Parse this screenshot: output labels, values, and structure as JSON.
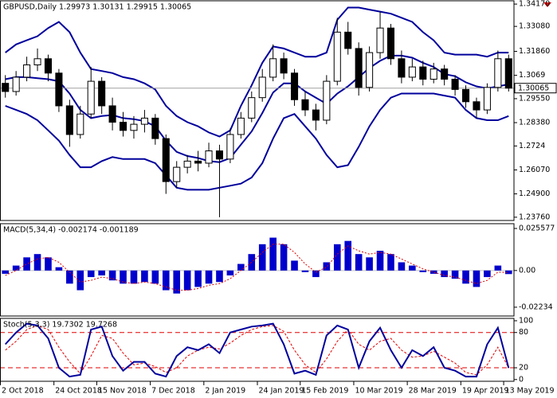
{
  "chart_data": [
    {
      "type": "candlestick",
      "title": "GBPUSD,Daily 1.29973 1.30131 1.29915 1.30065",
      "categories": [
        "2 Oct 2018",
        null,
        null,
        null,
        null,
        "24 Oct 2018",
        null,
        null,
        null,
        "15 Nov 2018",
        null,
        null,
        null,
        null,
        "7 Dec 2018",
        null,
        null,
        null,
        null,
        "2 Jan 2019",
        null,
        null,
        null,
        null,
        "24 Jan 2019",
        null,
        null,
        null,
        "15 Feb 2019",
        null,
        null,
        null,
        null,
        "10 Mar 2019",
        null,
        null,
        null,
        null,
        "28 Mar 2019",
        null,
        null,
        null,
        null,
        "19 Apr 2019",
        null,
        null,
        null,
        "13 May 2019"
      ],
      "open": [
        1.303,
        1.299,
        1.306,
        1.312,
        1.315,
        1.308,
        1.292,
        1.278,
        1.288,
        1.304,
        1.292,
        1.284,
        1.28,
        1.283,
        1.286,
        1.276,
        1.255,
        1.262,
        1.265,
        1.264,
        1.27,
        1.266,
        1.278,
        1.286,
        1.296,
        1.306,
        1.315,
        1.308,
        1.295,
        1.29,
        1.285,
        1.304,
        1.328,
        1.32,
        1.301,
        1.318,
        1.33,
        1.315,
        1.306,
        1.311,
        1.305,
        1.31,
        1.305,
        1.3,
        1.294,
        1.29,
        1.301,
        1.315
      ],
      "high": [
        1.307,
        1.309,
        1.316,
        1.32,
        1.317,
        1.31,
        1.295,
        1.292,
        1.311,
        1.306,
        1.296,
        1.289,
        1.287,
        1.29,
        1.288,
        1.278,
        1.265,
        1.268,
        1.27,
        1.274,
        1.273,
        1.281,
        1.289,
        1.299,
        1.31,
        1.322,
        1.318,
        1.31,
        1.299,
        1.293,
        1.307,
        1.335,
        1.333,
        1.323,
        1.321,
        1.338,
        1.332,
        1.319,
        1.315,
        1.314,
        1.313,
        1.312,
        1.307,
        1.302,
        1.296,
        1.303,
        1.319,
        1.317
      ],
      "low": [
        1.296,
        1.297,
        1.304,
        1.309,
        1.304,
        1.289,
        1.272,
        1.276,
        1.286,
        1.288,
        1.28,
        1.277,
        1.276,
        1.279,
        1.273,
        1.249,
        1.252,
        1.259,
        1.26,
        1.262,
        1.2376,
        1.264,
        1.276,
        1.284,
        1.294,
        1.304,
        1.305,
        1.292,
        1.287,
        1.28,
        1.283,
        1.302,
        1.317,
        1.297,
        1.299,
        1.315,
        1.312,
        1.303,
        1.304,
        1.302,
        1.303,
        1.302,
        1.297,
        1.291,
        1.286,
        1.288,
        1.299,
        1.299
      ],
      "close": [
        1.299,
        1.306,
        1.312,
        1.315,
        1.308,
        1.292,
        1.278,
        1.288,
        1.304,
        1.292,
        1.284,
        1.28,
        1.283,
        1.286,
        1.276,
        1.255,
        1.262,
        1.265,
        1.264,
        1.27,
        1.266,
        1.278,
        1.286,
        1.296,
        1.306,
        1.315,
        1.308,
        1.295,
        1.29,
        1.285,
        1.304,
        1.328,
        1.32,
        1.301,
        1.318,
        1.33,
        1.315,
        1.306,
        1.311,
        1.305,
        1.31,
        1.305,
        1.3,
        1.294,
        1.29,
        1.301,
        1.315,
        1.30065
      ],
      "up_color": "#ffffff",
      "down_color": "#000000",
      "candle_stroke": "#000000",
      "bands": {
        "color": "#00009c",
        "upper": [
          1.318,
          1.322,
          1.324,
          1.326,
          1.33,
          1.333,
          1.328,
          1.318,
          1.31,
          1.309,
          1.308,
          1.306,
          1.305,
          1.303,
          1.3,
          1.292,
          1.287,
          1.284,
          1.282,
          1.279,
          1.277,
          1.28,
          1.292,
          1.302,
          1.313,
          1.321,
          1.32,
          1.318,
          1.316,
          1.316,
          1.318,
          1.334,
          1.34,
          1.34,
          1.339,
          1.338,
          1.337,
          1.335,
          1.333,
          1.328,
          1.324,
          1.318,
          1.317,
          1.317,
          1.317,
          1.316,
          1.318,
          1.318
        ],
        "middle": [
          1.305,
          1.306,
          1.306,
          1.3055,
          1.305,
          1.304,
          1.298,
          1.29,
          1.286,
          1.287,
          1.2875,
          1.286,
          1.2855,
          1.2845,
          1.282,
          1.275,
          1.2695,
          1.2675,
          1.2665,
          1.265,
          1.2645,
          1.2665,
          1.273,
          1.2795,
          1.2885,
          1.2985,
          1.303,
          1.303,
          1.299,
          1.296,
          1.293,
          1.298,
          1.3015,
          1.306,
          1.3105,
          1.314,
          1.3165,
          1.3165,
          1.3155,
          1.313,
          1.311,
          1.3075,
          1.3065,
          1.3035,
          1.3015,
          1.3005,
          1.3015,
          1.3025
        ],
        "lower": [
          1.292,
          1.29,
          1.288,
          1.285,
          1.28,
          1.275,
          1.268,
          1.262,
          1.262,
          1.265,
          1.267,
          1.266,
          1.266,
          1.266,
          1.264,
          1.258,
          1.252,
          1.251,
          1.251,
          1.251,
          1.252,
          1.253,
          1.254,
          1.257,
          1.264,
          1.276,
          1.286,
          1.288,
          1.282,
          1.276,
          1.268,
          1.262,
          1.263,
          1.272,
          1.282,
          1.29,
          1.296,
          1.298,
          1.298,
          1.298,
          1.298,
          1.297,
          1.296,
          1.29,
          1.286,
          1.285,
          1.285,
          1.287
        ]
      },
      "last_price": 1.30065,
      "ylim": [
        1.236,
        1.3433
      ],
      "yticks": [
        {
          "value": 1.3417,
          "label": "1.34170"
        },
        {
          "value": 1.3308,
          "label": "1.33080"
        },
        {
          "value": 1.3186,
          "label": "1.31860"
        },
        1.3069,
        {
          "value": 1.2955,
          "label": "1.29550"
        },
        {
          "value": 1.2838,
          "label": "1.28380"
        },
        1.2724,
        {
          "value": 1.2607,
          "label": "1.26070"
        },
        {
          "value": 1.249,
          "label": "1.24900"
        },
        {
          "value": 1.2376,
          "label": "1.23760"
        }
      ]
    },
    {
      "type": "macd",
      "title": "MACD(5,34,4) -0.002174 -0.001189",
      "histogram": [
        -0.002,
        0.003,
        0.008,
        0.01,
        0.008,
        0.002,
        -0.008,
        -0.012,
        -0.004,
        -0.003,
        -0.006,
        -0.008,
        -0.008,
        -0.007,
        -0.008,
        -0.012,
        -0.014,
        -0.012,
        -0.01,
        -0.008,
        -0.007,
        -0.003,
        0.004,
        0.01,
        0.016,
        0.02,
        0.016,
        0.006,
        -0.001,
        -0.004,
        0.005,
        0.016,
        0.018,
        0.01,
        0.008,
        0.012,
        0.01,
        0.005,
        0.003,
        -0.001,
        -0.002,
        -0.004,
        -0.005,
        -0.008,
        -0.01,
        -0.004,
        0.003,
        -0.002174
      ],
      "signal": [
        -0.003,
        0.0,
        0.004,
        0.007,
        0.008,
        0.005,
        -0.001,
        -0.007,
        -0.006,
        -0.004,
        -0.005,
        -0.007,
        -0.008,
        -0.007,
        -0.008,
        -0.01,
        -0.012,
        -0.012,
        -0.011,
        -0.009,
        -0.008,
        -0.005,
        0.0,
        0.005,
        0.011,
        0.016,
        0.016,
        0.011,
        0.004,
        -0.001,
        0.002,
        0.01,
        0.015,
        0.012,
        0.01,
        0.011,
        0.01,
        0.007,
        0.004,
        0.001,
        -0.001,
        -0.003,
        -0.004,
        -0.006,
        -0.008,
        -0.006,
        -0.001,
        -0.001189
      ],
      "histogram_color": "#0000cc",
      "signal_color": "#e00000",
      "ylim": [
        -0.0277,
        0.0285
      ],
      "yticks": [
        0.025577,
        {
          "value": 0,
          "label": "0.00"
        },
        -0.02234
      ]
    },
    {
      "type": "stochastic",
      "title": "Stoch(5,3,3) 19.7302 19.7268",
      "main": [
        60,
        80,
        95,
        92,
        70,
        20,
        5,
        8,
        85,
        90,
        40,
        15,
        30,
        30,
        10,
        5,
        40,
        55,
        50,
        60,
        45,
        80,
        85,
        90,
        92,
        95,
        60,
        10,
        15,
        8,
        75,
        92,
        85,
        20,
        65,
        88,
        50,
        20,
        50,
        40,
        55,
        20,
        15,
        5,
        5,
        60,
        88,
        19.7302
      ],
      "signal": [
        50,
        65,
        85,
        92,
        85,
        55,
        30,
        10,
        40,
        75,
        70,
        45,
        25,
        28,
        22,
        12,
        20,
        40,
        50,
        55,
        52,
        62,
        75,
        85,
        90,
        92,
        82,
        50,
        25,
        12,
        35,
        65,
        85,
        60,
        50,
        65,
        70,
        50,
        38,
        40,
        48,
        38,
        28,
        12,
        8,
        25,
        55,
        19.7268
      ],
      "main_color": "#00009c",
      "signal_color": "#e00000",
      "level_color": "#e00000",
      "levels": [
        80,
        20
      ],
      "ylim": [
        -3,
        104
      ],
      "yticks": [
        100,
        80,
        20,
        0
      ]
    }
  ]
}
